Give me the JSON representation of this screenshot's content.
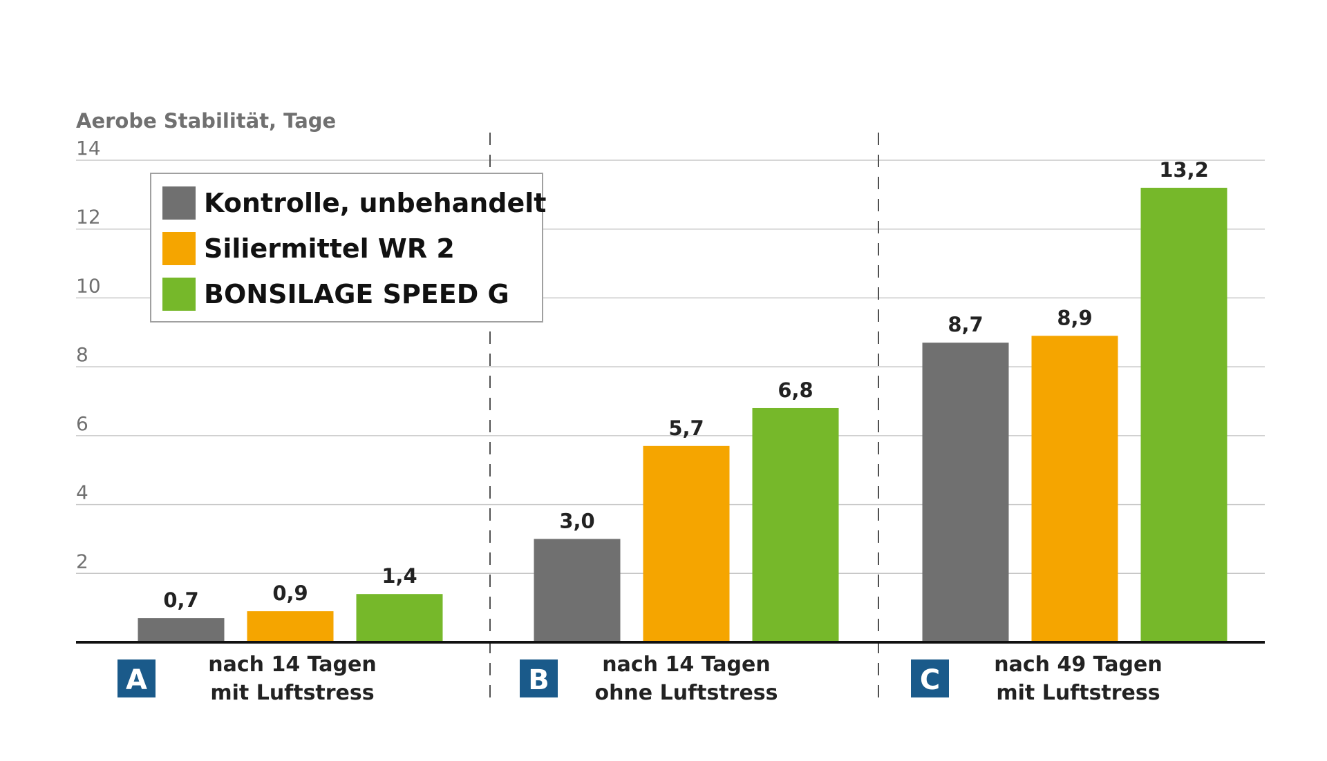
{
  "chart_data": {
    "type": "bar",
    "ylabel": "Aerobe Stabilität, Tage",
    "ylim": [
      0,
      14
    ],
    "yticks": [
      "2",
      "4",
      "6",
      "8",
      "10",
      "12",
      "14"
    ],
    "grid": true,
    "legend_position": "top-left",
    "groups": [
      {
        "badge": "A",
        "label_line1": "nach 14 Tagen",
        "label_line2": "mit Luftstress"
      },
      {
        "badge": "B",
        "label_line1": "nach 14 Tagen",
        "label_line2": "ohne Luftstress"
      },
      {
        "badge": "C",
        "label_line1": "nach 49 Tagen",
        "label_line2": "mit Luftstress"
      }
    ],
    "series": [
      {
        "name": "Kontrolle, unbehandelt",
        "color": "#707070",
        "values": [
          0.7,
          3.0,
          8.7
        ],
        "labels": [
          "0,7",
          "3,0",
          "8,7"
        ]
      },
      {
        "name": "Siliermittel WR 2",
        "color": "#f5a500",
        "values": [
          0.9,
          5.7,
          8.9
        ],
        "labels": [
          "0,9",
          "5,7",
          "8,9"
        ]
      },
      {
        "name": "BONSILAGE SPEED G",
        "color": "#76b82a",
        "values": [
          1.4,
          6.8,
          13.2
        ],
        "labels": [
          "1,4",
          "6,8",
          "13,2"
        ]
      }
    ],
    "colors": {
      "badge": "#1a5a8a",
      "axis_text": "#707070",
      "label_text": "#222222"
    }
  }
}
